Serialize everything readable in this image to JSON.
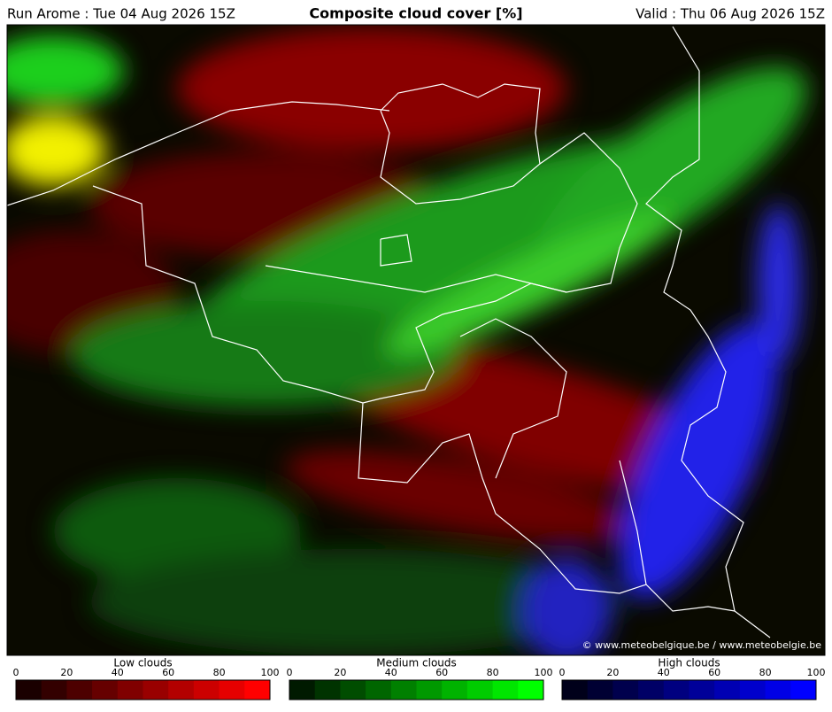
{
  "header": {
    "left": "Run Arome : Tue 04 Aug 2026 15Z",
    "title": "Composite cloud cover [%]",
    "right": "Valid : Thu 06 Aug 2026 15Z"
  },
  "credit": "© www.meteobelgique.be / www.meteobelgie.be",
  "legends": [
    {
      "title": "Low clouds",
      "ticks": [
        0,
        20,
        40,
        60,
        80,
        100
      ],
      "colors": [
        "#1a0000",
        "#330000",
        "#4d0000",
        "#660000",
        "#800000",
        "#990000",
        "#b30000",
        "#cc0000",
        "#e60000",
        "#ff0000"
      ]
    },
    {
      "title": "Medium clouds",
      "ticks": [
        0,
        20,
        40,
        60,
        80,
        100
      ],
      "colors": [
        "#001a00",
        "#003300",
        "#004d00",
        "#006600",
        "#008000",
        "#009900",
        "#00b300",
        "#00cc00",
        "#00e600",
        "#00ff00"
      ]
    },
    {
      "title": "High clouds",
      "ticks": [
        0,
        20,
        40,
        60,
        80,
        100
      ],
      "colors": [
        "#00001a",
        "#000033",
        "#00004d",
        "#000066",
        "#000080",
        "#000099",
        "#0000b3",
        "#0000cc",
        "#0000e6",
        "#0000ff"
      ]
    }
  ]
}
